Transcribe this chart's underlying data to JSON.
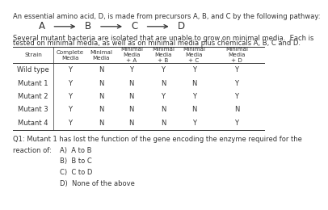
{
  "title_line1": "An essential amino acid, D, is made from precursors A, B, and C by the following pathway:",
  "pathway": [
    "A",
    "B",
    "C",
    "D"
  ],
  "context_text1": "Several mutant bacteria are isolated that are unable to grow on minimal media.  Each is",
  "context_text2": "tested on minimal media, as well as on minimal media plus chemicals A, B, C and D.",
  "col_headers": [
    "Strain",
    "Complete\nMedia",
    "Minimal\nMedia",
    "Minimal\nMedia\n+ A",
    "Minimal\nMedia\n+ B",
    "Minimal\nMedia\n+ C",
    "Minimal\nMedia\n+ D"
  ],
  "rows": [
    [
      "Wild type",
      "Y",
      "N",
      "Y",
      "Y",
      "Y",
      "Y"
    ],
    [
      "Mutant 1",
      "Y",
      "N",
      "N",
      "N",
      "N",
      "Y"
    ],
    [
      "Mutant 2",
      "Y",
      "N",
      "N",
      "Y",
      "Y",
      "Y"
    ],
    [
      "Mutant 3",
      "Y",
      "N",
      "N",
      "N",
      "N",
      "N"
    ],
    [
      "Mutant 4",
      "Y",
      "N",
      "N",
      "N",
      "Y",
      "Y"
    ]
  ],
  "q1_line1": "Q1: Mutant 1 has lost the function of the gene encoding the enzyme required for the",
  "q1_line2": "reaction of:",
  "choices": [
    "A)  A to B",
    "B)  B to C",
    "C)  C to D",
    "D)  None of the above"
  ],
  "bg_color": "#ffffff",
  "text_color": "#333333",
  "body_fs": 6.0,
  "pathway_fs": 8.5,
  "header_fs": 5.3,
  "row_fs": 6.0
}
